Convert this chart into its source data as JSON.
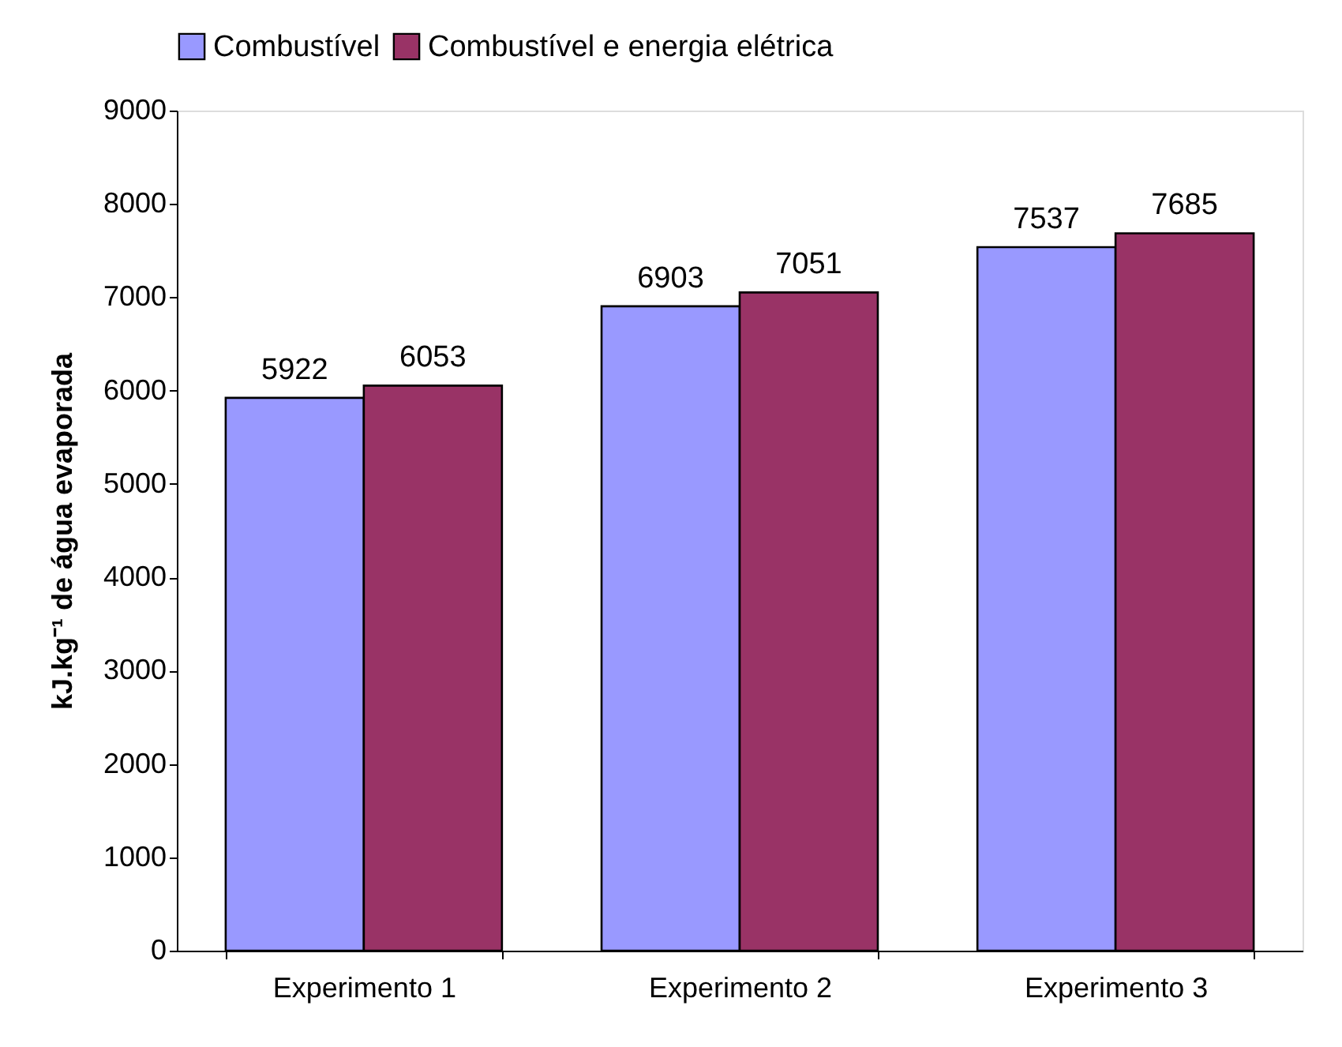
{
  "chart_data": {
    "type": "bar",
    "ylabel": "kJ.kg⁻¹ de água evaporada",
    "categories": [
      "Experimento 1",
      "Experimento 2",
      "Experimento 3"
    ],
    "series": [
      {
        "name": "Combustível",
        "color": "#9999ff",
        "values": [
          5922,
          6903,
          7537
        ]
      },
      {
        "name": "Combustível e energia elétrica",
        "color": "#993366",
        "values": [
          6053,
          7051,
          7685
        ]
      }
    ],
    "ylim": [
      0,
      9000
    ],
    "yticks": [
      0,
      1000,
      2000,
      3000,
      4000,
      5000,
      6000,
      7000,
      8000,
      9000
    ],
    "grid": false,
    "legend": "top",
    "data_labels": true
  }
}
